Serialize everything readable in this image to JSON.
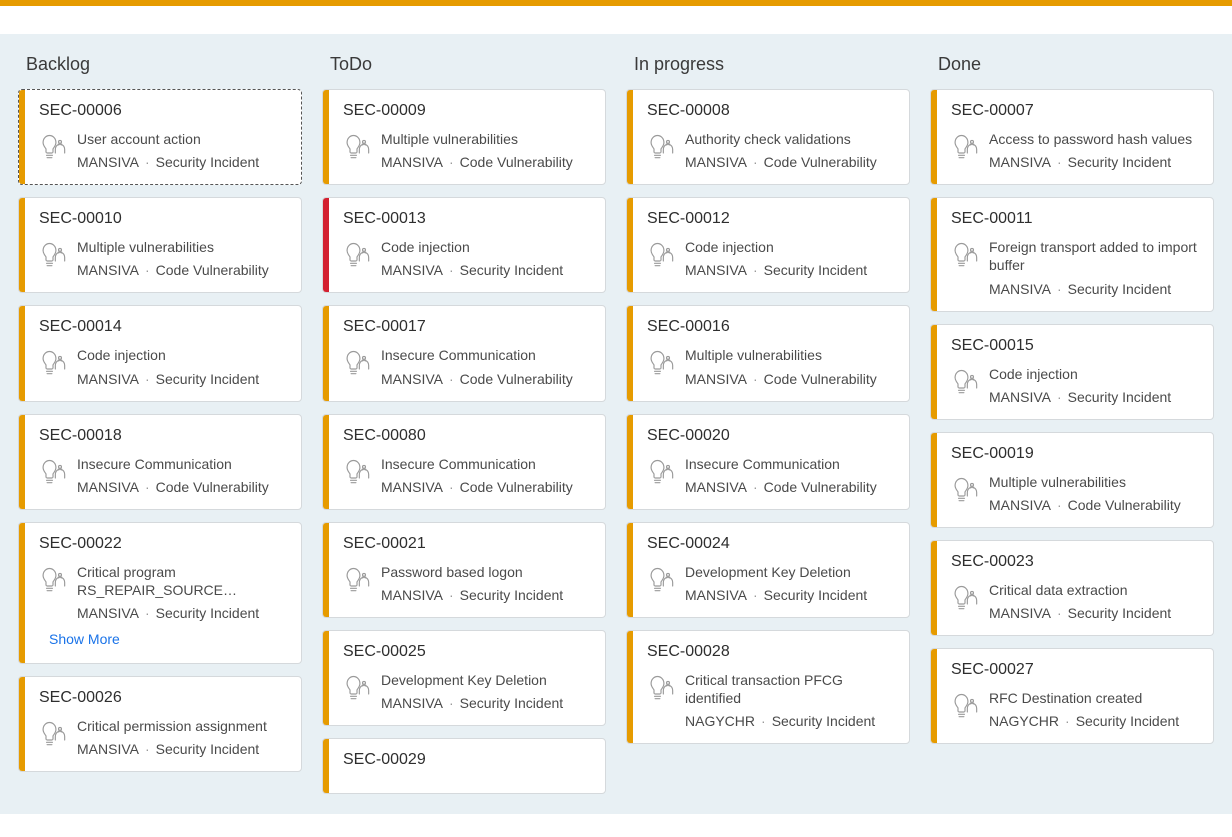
{
  "accent_color": "#e69b00",
  "board_background": "#e8f0f4",
  "stripe_colors": {
    "yellow": "#e69b00",
    "red": "#d32030"
  },
  "icon_name": "lightbulb-head-icon",
  "labels": {
    "show_more": "Show More",
    "meta_separator": "·"
  },
  "columns": [
    {
      "title": "Backlog",
      "cards": [
        {
          "id": "SEC-00006",
          "title": "User account action",
          "owner": "MANSIVA",
          "category": "Security Incident",
          "stripe": "yellow",
          "selected": true
        },
        {
          "id": "SEC-00010",
          "title": "Multiple vulnerabilities",
          "owner": "MANSIVA",
          "category": "Code Vulnerability",
          "stripe": "yellow"
        },
        {
          "id": "SEC-00014",
          "title": "Code injection",
          "owner": "MANSIVA",
          "category": "Security Incident",
          "stripe": "yellow"
        },
        {
          "id": "SEC-00018",
          "title": "Insecure Communication",
          "owner": "MANSIVA",
          "category": "Code Vulnerability",
          "stripe": "yellow"
        },
        {
          "id": "SEC-00022",
          "title": "Critical program RS_REPAIR_SOURCE…",
          "owner": "MANSIVA",
          "category": "Security Incident",
          "stripe": "yellow",
          "show_more": true
        },
        {
          "id": "SEC-00026",
          "title": "Critical permission assignment",
          "owner": "MANSIVA",
          "category": "Security Incident",
          "stripe": "yellow"
        }
      ]
    },
    {
      "title": "ToDo",
      "cards": [
        {
          "id": "SEC-00009",
          "title": "Multiple vulnerabilities",
          "owner": "MANSIVA",
          "category": "Code Vulnerability",
          "stripe": "yellow"
        },
        {
          "id": "SEC-00013",
          "title": "Code injection",
          "owner": "MANSIVA",
          "category": "Security Incident",
          "stripe": "red"
        },
        {
          "id": "SEC-00017",
          "title": "Insecure Communication",
          "owner": "MANSIVA",
          "category": "Code Vulnerability",
          "stripe": "yellow"
        },
        {
          "id": "SEC-00080",
          "title": "Insecure Communication",
          "owner": "MANSIVA",
          "category": "Code Vulnerability",
          "stripe": "yellow"
        },
        {
          "id": "SEC-00021",
          "title": "Password based logon",
          "owner": "MANSIVA",
          "category": "Security Incident",
          "stripe": "yellow"
        },
        {
          "id": "SEC-00025",
          "title": "Development Key Deletion",
          "owner": "MANSIVA",
          "category": "Security Incident",
          "stripe": "yellow"
        },
        {
          "id": "SEC-00029",
          "title": "",
          "owner": "",
          "category": "",
          "stripe": "yellow",
          "partial": true
        }
      ]
    },
    {
      "title": "In progress",
      "cards": [
        {
          "id": "SEC-00008",
          "title": "Authority check validations",
          "owner": "MANSIVA",
          "category": "Code Vulnerability",
          "stripe": "yellow"
        },
        {
          "id": "SEC-00012",
          "title": "Code injection",
          "owner": "MANSIVA",
          "category": "Security Incident",
          "stripe": "yellow"
        },
        {
          "id": "SEC-00016",
          "title": "Multiple vulnerabilities",
          "owner": "MANSIVA",
          "category": "Code Vulnerability",
          "stripe": "yellow"
        },
        {
          "id": "SEC-00020",
          "title": "Insecure Communication",
          "owner": "MANSIVA",
          "category": "Code Vulnerability",
          "stripe": "yellow"
        },
        {
          "id": "SEC-00024",
          "title": "Development Key Deletion",
          "owner": "MANSIVA",
          "category": "Security Incident",
          "stripe": "yellow"
        },
        {
          "id": "SEC-00028",
          "title": "Critical transaction PFCG identified",
          "owner": "NAGYCHR",
          "category": "Security Incident",
          "stripe": "yellow"
        }
      ]
    },
    {
      "title": "Done",
      "cards": [
        {
          "id": "SEC-00007",
          "title": "Access to password hash values",
          "owner": "MANSIVA",
          "category": "Security Incident",
          "stripe": "yellow"
        },
        {
          "id": "SEC-00011",
          "title": "Foreign transport added to import buffer",
          "owner": "MANSIVA",
          "category": "Security Incident",
          "stripe": "yellow"
        },
        {
          "id": "SEC-00015",
          "title": "Code injection",
          "owner": "MANSIVA",
          "category": "Security Incident",
          "stripe": "yellow"
        },
        {
          "id": "SEC-00019",
          "title": "Multiple vulnerabilities",
          "owner": "MANSIVA",
          "category": "Code Vulnerability",
          "stripe": "yellow"
        },
        {
          "id": "SEC-00023",
          "title": "Critical data extraction",
          "owner": "MANSIVA",
          "category": "Security Incident",
          "stripe": "yellow"
        },
        {
          "id": "SEC-00027",
          "title": "RFC Destination created",
          "owner": "NAGYCHR",
          "category": "Security Incident",
          "stripe": "yellow"
        }
      ]
    }
  ]
}
